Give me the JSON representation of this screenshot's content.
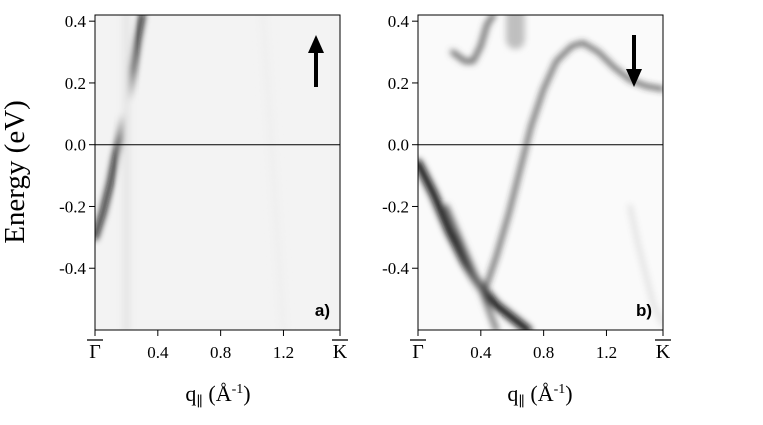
{
  "figure": {
    "ylabel": "Energy (eV)"
  },
  "chart_data": [
    {
      "type": "heatmap",
      "panel_label": "a)",
      "spin_arrow": "up-arrow",
      "xlabel": {
        "base": "q",
        "sub": "∥",
        "unit": " (Å",
        "exp": "-1",
        "close": ")"
      },
      "ylabel": "Energy (eV)",
      "xlim": [
        0.0,
        1.56
      ],
      "ylim": [
        -0.6,
        0.42
      ],
      "x_ticks": [
        {
          "value": 0.0,
          "label": "Γ",
          "overbar": true
        },
        {
          "value": 0.4,
          "label": "0.4"
        },
        {
          "value": 0.8,
          "label": "0.8"
        },
        {
          "value": 1.2,
          "label": "1.2"
        },
        {
          "value": 1.56,
          "label": "K",
          "overbar": true
        }
      ],
      "y_ticks": [
        {
          "value": 0.4,
          "label": "0.4"
        },
        {
          "value": 0.2,
          "label": "0.2"
        },
        {
          "value": 0.0,
          "label": "0.0"
        },
        {
          "value": -0.2,
          "label": "-0.2"
        },
        {
          "value": -0.4,
          "label": "-0.4"
        }
      ],
      "reference_line_y": 0.0,
      "colormap": "gray_inverted",
      "bands": [
        {
          "points": [
            [
              0.0,
              -0.3
            ],
            [
              0.05,
              -0.22
            ],
            [
              0.1,
              -0.12
            ],
            [
              0.13,
              -0.04
            ],
            [
              0.16,
              0.02
            ],
            [
              0.2,
              0.12
            ],
            [
              0.24,
              0.24
            ],
            [
              0.27,
              0.34
            ],
            [
              0.3,
              0.42
            ]
          ],
          "intensity": 0.95,
          "width": 0.035
        },
        {
          "points": [
            [
              0.2,
              -0.6
            ],
            [
              0.2,
              0.42
            ]
          ],
          "intensity": 0.1,
          "width": 0.05
        },
        {
          "points": [
            [
              1.2,
              -0.6
            ],
            [
              1.07,
              0.42
            ]
          ],
          "intensity": 0.06,
          "width": 0.06
        }
      ]
    },
    {
      "type": "heatmap",
      "panel_label": "b)",
      "spin_arrow": "down-arrow",
      "xlabel": {
        "base": "q",
        "sub": "∥",
        "unit": " (Å",
        "exp": "-1",
        "close": ")"
      },
      "ylabel": "Energy (eV)",
      "xlim": [
        0.0,
        1.56
      ],
      "ylim": [
        -0.6,
        0.42
      ],
      "x_ticks": [
        {
          "value": 0.0,
          "label": "Γ",
          "overbar": true
        },
        {
          "value": 0.4,
          "label": "0.4"
        },
        {
          "value": 0.8,
          "label": "0.8"
        },
        {
          "value": 1.2,
          "label": "1.2"
        },
        {
          "value": 1.56,
          "label": "K",
          "overbar": true
        }
      ],
      "y_ticks": [
        {
          "value": 0.4,
          "label": "0.4"
        },
        {
          "value": 0.2,
          "label": "0.2"
        },
        {
          "value": 0.0,
          "label": "0.0"
        },
        {
          "value": -0.2,
          "label": "-0.2"
        },
        {
          "value": -0.4,
          "label": "-0.4"
        }
      ],
      "reference_line_y": 0.0,
      "colormap": "gray_inverted",
      "bands": [
        {
          "points": [
            [
              0.0,
              -0.06
            ],
            [
              0.1,
              -0.16
            ],
            [
              0.2,
              -0.28
            ],
            [
              0.3,
              -0.38
            ],
            [
              0.4,
              -0.46
            ],
            [
              0.5,
              -0.52
            ],
            [
              0.6,
              -0.56
            ],
            [
              0.7,
              -0.6
            ]
          ],
          "intensity": 0.95,
          "width": 0.05
        },
        {
          "points": [
            [
              0.18,
              -0.2
            ],
            [
              0.28,
              -0.32
            ],
            [
              0.38,
              -0.44
            ],
            [
              0.44,
              -0.52
            ],
            [
              0.5,
              -0.6
            ]
          ],
          "intensity": 0.6,
          "width": 0.03
        },
        {
          "points": [
            [
              0.42,
              -0.48
            ],
            [
              0.5,
              -0.36
            ],
            [
              0.58,
              -0.22
            ],
            [
              0.66,
              -0.06
            ],
            [
              0.72,
              0.06
            ],
            [
              0.8,
              0.18
            ],
            [
              0.88,
              0.27
            ],
            [
              0.98,
              0.32
            ],
            [
              1.05,
              0.33
            ],
            [
              1.15,
              0.3
            ],
            [
              1.25,
              0.25
            ],
            [
              1.35,
              0.21
            ],
            [
              1.45,
              0.19
            ],
            [
              1.56,
              0.18
            ]
          ],
          "intensity": 0.8,
          "width": 0.022
        },
        {
          "points": [
            [
              0.22,
              0.3
            ],
            [
              0.3,
              0.27
            ],
            [
              0.35,
              0.27
            ],
            [
              0.4,
              0.32
            ],
            [
              0.44,
              0.39
            ],
            [
              0.48,
              0.42
            ]
          ],
          "intensity": 0.65,
          "width": 0.03
        },
        {
          "points": [
            [
              0.62,
              0.42
            ],
            [
              0.62,
              0.34
            ]
          ],
          "intensity": 0.25,
          "width": 0.12
        },
        {
          "points": [
            [
              1.35,
              -0.2
            ],
            [
              1.4,
              -0.32
            ],
            [
              1.45,
              -0.42
            ],
            [
              1.5,
              -0.52
            ],
            [
              1.56,
              -0.58
            ]
          ],
          "intensity": 0.12,
          "width": 0.03
        }
      ]
    }
  ]
}
